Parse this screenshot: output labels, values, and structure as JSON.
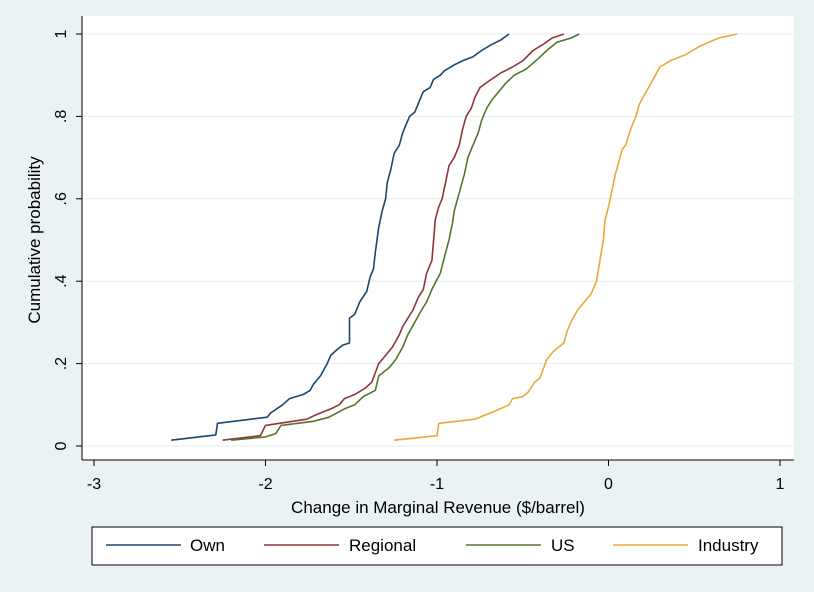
{
  "chart_data": {
    "type": "line",
    "title": "",
    "xlabel": "Change in Marginal Revenue ($/barrel)",
    "ylabel": "Cumulative probability",
    "xlim": [
      -3,
      1
    ],
    "ylim": [
      0,
      1
    ],
    "x_ticks": [
      -3,
      -2,
      -1,
      0,
      1
    ],
    "x_tick_labels": [
      "-3",
      "-2",
      "-1",
      "0",
      "1"
    ],
    "y_ticks": [
      0,
      0.2,
      0.4,
      0.6,
      0.8,
      1
    ],
    "y_tick_labels": [
      "0",
      ".2",
      ".4",
      ".6",
      ".8",
      "1"
    ],
    "grid": true,
    "legend_position": "bottom",
    "series": [
      {
        "name": "Own",
        "color": "#1a476f",
        "points": [
          [
            -2.55,
            0.014
          ],
          [
            -2.29,
            0.027
          ],
          [
            -2.28,
            0.055
          ],
          [
            -1.99,
            0.07
          ],
          [
            -1.97,
            0.08
          ],
          [
            -1.9,
            0.1
          ],
          [
            -1.86,
            0.115
          ],
          [
            -1.78,
            0.125
          ],
          [
            -1.74,
            0.135
          ],
          [
            -1.72,
            0.15
          ],
          [
            -1.68,
            0.17
          ],
          [
            -1.64,
            0.2
          ],
          [
            -1.62,
            0.22
          ],
          [
            -1.58,
            0.235
          ],
          [
            -1.55,
            0.245
          ],
          [
            -1.51,
            0.25
          ],
          [
            -1.51,
            0.31
          ],
          [
            -1.48,
            0.32
          ],
          [
            -1.45,
            0.35
          ],
          [
            -1.41,
            0.375
          ],
          [
            -1.39,
            0.41
          ],
          [
            -1.37,
            0.43
          ],
          [
            -1.36,
            0.47
          ],
          [
            -1.34,
            0.53
          ],
          [
            -1.32,
            0.57
          ],
          [
            -1.3,
            0.6
          ],
          [
            -1.29,
            0.64
          ],
          [
            -1.27,
            0.67
          ],
          [
            -1.25,
            0.71
          ],
          [
            -1.22,
            0.73
          ],
          [
            -1.2,
            0.76
          ],
          [
            -1.18,
            0.78
          ],
          [
            -1.16,
            0.8
          ],
          [
            -1.13,
            0.81
          ],
          [
            -1.1,
            0.84
          ],
          [
            -1.08,
            0.86
          ],
          [
            -1.04,
            0.87
          ],
          [
            -1.02,
            0.89
          ],
          [
            -0.98,
            0.9
          ],
          [
            -0.96,
            0.91
          ],
          [
            -0.9,
            0.925
          ],
          [
            -0.85,
            0.935
          ],
          [
            -0.79,
            0.945
          ],
          [
            -0.74,
            0.96
          ],
          [
            -0.68,
            0.975
          ],
          [
            -0.63,
            0.985
          ],
          [
            -0.58,
            1.0
          ]
        ]
      },
      {
        "name": "Regional",
        "color": "#90353b",
        "points": [
          [
            -2.25,
            0.014
          ],
          [
            -2.03,
            0.025
          ],
          [
            -2.0,
            0.05
          ],
          [
            -1.76,
            0.065
          ],
          [
            -1.71,
            0.075
          ],
          [
            -1.62,
            0.09
          ],
          [
            -1.57,
            0.1
          ],
          [
            -1.54,
            0.115
          ],
          [
            -1.48,
            0.125
          ],
          [
            -1.42,
            0.14
          ],
          [
            -1.38,
            0.155
          ],
          [
            -1.34,
            0.2
          ],
          [
            -1.3,
            0.22
          ],
          [
            -1.26,
            0.24
          ],
          [
            -1.22,
            0.27
          ],
          [
            -1.2,
            0.29
          ],
          [
            -1.17,
            0.31
          ],
          [
            -1.14,
            0.33
          ],
          [
            -1.11,
            0.36
          ],
          [
            -1.08,
            0.38
          ],
          [
            -1.06,
            0.42
          ],
          [
            -1.03,
            0.45
          ],
          [
            -1.02,
            0.5
          ],
          [
            -1.01,
            0.55
          ],
          [
            -0.99,
            0.58
          ],
          [
            -0.97,
            0.6
          ],
          [
            -0.95,
            0.64
          ],
          [
            -0.93,
            0.68
          ],
          [
            -0.9,
            0.7
          ],
          [
            -0.87,
            0.73
          ],
          [
            -0.85,
            0.77
          ],
          [
            -0.83,
            0.8
          ],
          [
            -0.8,
            0.82
          ],
          [
            -0.78,
            0.845
          ],
          [
            -0.75,
            0.87
          ],
          [
            -0.7,
            0.885
          ],
          [
            -0.63,
            0.905
          ],
          [
            -0.56,
            0.92
          ],
          [
            -0.5,
            0.935
          ],
          [
            -0.44,
            0.96
          ],
          [
            -0.38,
            0.975
          ],
          [
            -0.33,
            0.99
          ],
          [
            -0.26,
            1.0
          ]
        ]
      },
      {
        "name": "US",
        "color": "#55752f",
        "points": [
          [
            -2.2,
            0.014
          ],
          [
            -2.0,
            0.022
          ],
          [
            -1.94,
            0.03
          ],
          [
            -1.91,
            0.05
          ],
          [
            -1.72,
            0.06
          ],
          [
            -1.63,
            0.07
          ],
          [
            -1.54,
            0.09
          ],
          [
            -1.48,
            0.1
          ],
          [
            -1.43,
            0.12
          ],
          [
            -1.36,
            0.135
          ],
          [
            -1.34,
            0.17
          ],
          [
            -1.28,
            0.19
          ],
          [
            -1.24,
            0.21
          ],
          [
            -1.2,
            0.24
          ],
          [
            -1.17,
            0.27
          ],
          [
            -1.13,
            0.3
          ],
          [
            -1.09,
            0.33
          ],
          [
            -1.06,
            0.35
          ],
          [
            -1.03,
            0.38
          ],
          [
            -0.98,
            0.42
          ],
          [
            -0.95,
            0.47
          ],
          [
            -0.93,
            0.5
          ],
          [
            -0.91,
            0.54
          ],
          [
            -0.9,
            0.57
          ],
          [
            -0.88,
            0.6
          ],
          [
            -0.86,
            0.63
          ],
          [
            -0.84,
            0.66
          ],
          [
            -0.82,
            0.7
          ],
          [
            -0.79,
            0.73
          ],
          [
            -0.76,
            0.76
          ],
          [
            -0.74,
            0.79
          ],
          [
            -0.71,
            0.82
          ],
          [
            -0.68,
            0.84
          ],
          [
            -0.64,
            0.86
          ],
          [
            -0.6,
            0.88
          ],
          [
            -0.55,
            0.9
          ],
          [
            -0.48,
            0.915
          ],
          [
            -0.41,
            0.94
          ],
          [
            -0.36,
            0.96
          ],
          [
            -0.3,
            0.98
          ],
          [
            -0.22,
            0.99
          ],
          [
            -0.17,
            1.0
          ]
        ]
      },
      {
        "name": "Industry",
        "color": "#e8a93a",
        "points": [
          [
            -1.25,
            0.014
          ],
          [
            -1.0,
            0.025
          ],
          [
            -0.99,
            0.055
          ],
          [
            -0.78,
            0.065
          ],
          [
            -0.72,
            0.075
          ],
          [
            -0.66,
            0.085
          ],
          [
            -0.58,
            0.1
          ],
          [
            -0.56,
            0.115
          ],
          [
            -0.5,
            0.12
          ],
          [
            -0.47,
            0.13
          ],
          [
            -0.43,
            0.155
          ],
          [
            -0.4,
            0.165
          ],
          [
            -0.36,
            0.21
          ],
          [
            -0.32,
            0.23
          ],
          [
            -0.26,
            0.25
          ],
          [
            -0.24,
            0.28
          ],
          [
            -0.22,
            0.3
          ],
          [
            -0.18,
            0.33
          ],
          [
            -0.14,
            0.35
          ],
          [
            -0.1,
            0.37
          ],
          [
            -0.07,
            0.4
          ],
          [
            -0.05,
            0.45
          ],
          [
            -0.03,
            0.5
          ],
          [
            -0.02,
            0.55
          ],
          [
            0.0,
            0.58
          ],
          [
            0.02,
            0.62
          ],
          [
            0.04,
            0.66
          ],
          [
            0.06,
            0.69
          ],
          [
            0.08,
            0.72
          ],
          [
            0.1,
            0.73
          ],
          [
            0.13,
            0.77
          ],
          [
            0.16,
            0.8
          ],
          [
            0.18,
            0.83
          ],
          [
            0.22,
            0.86
          ],
          [
            0.26,
            0.89
          ],
          [
            0.3,
            0.92
          ],
          [
            0.36,
            0.935
          ],
          [
            0.45,
            0.95
          ],
          [
            0.53,
            0.97
          ],
          [
            0.64,
            0.99
          ],
          [
            0.75,
            1.0
          ]
        ]
      }
    ]
  }
}
